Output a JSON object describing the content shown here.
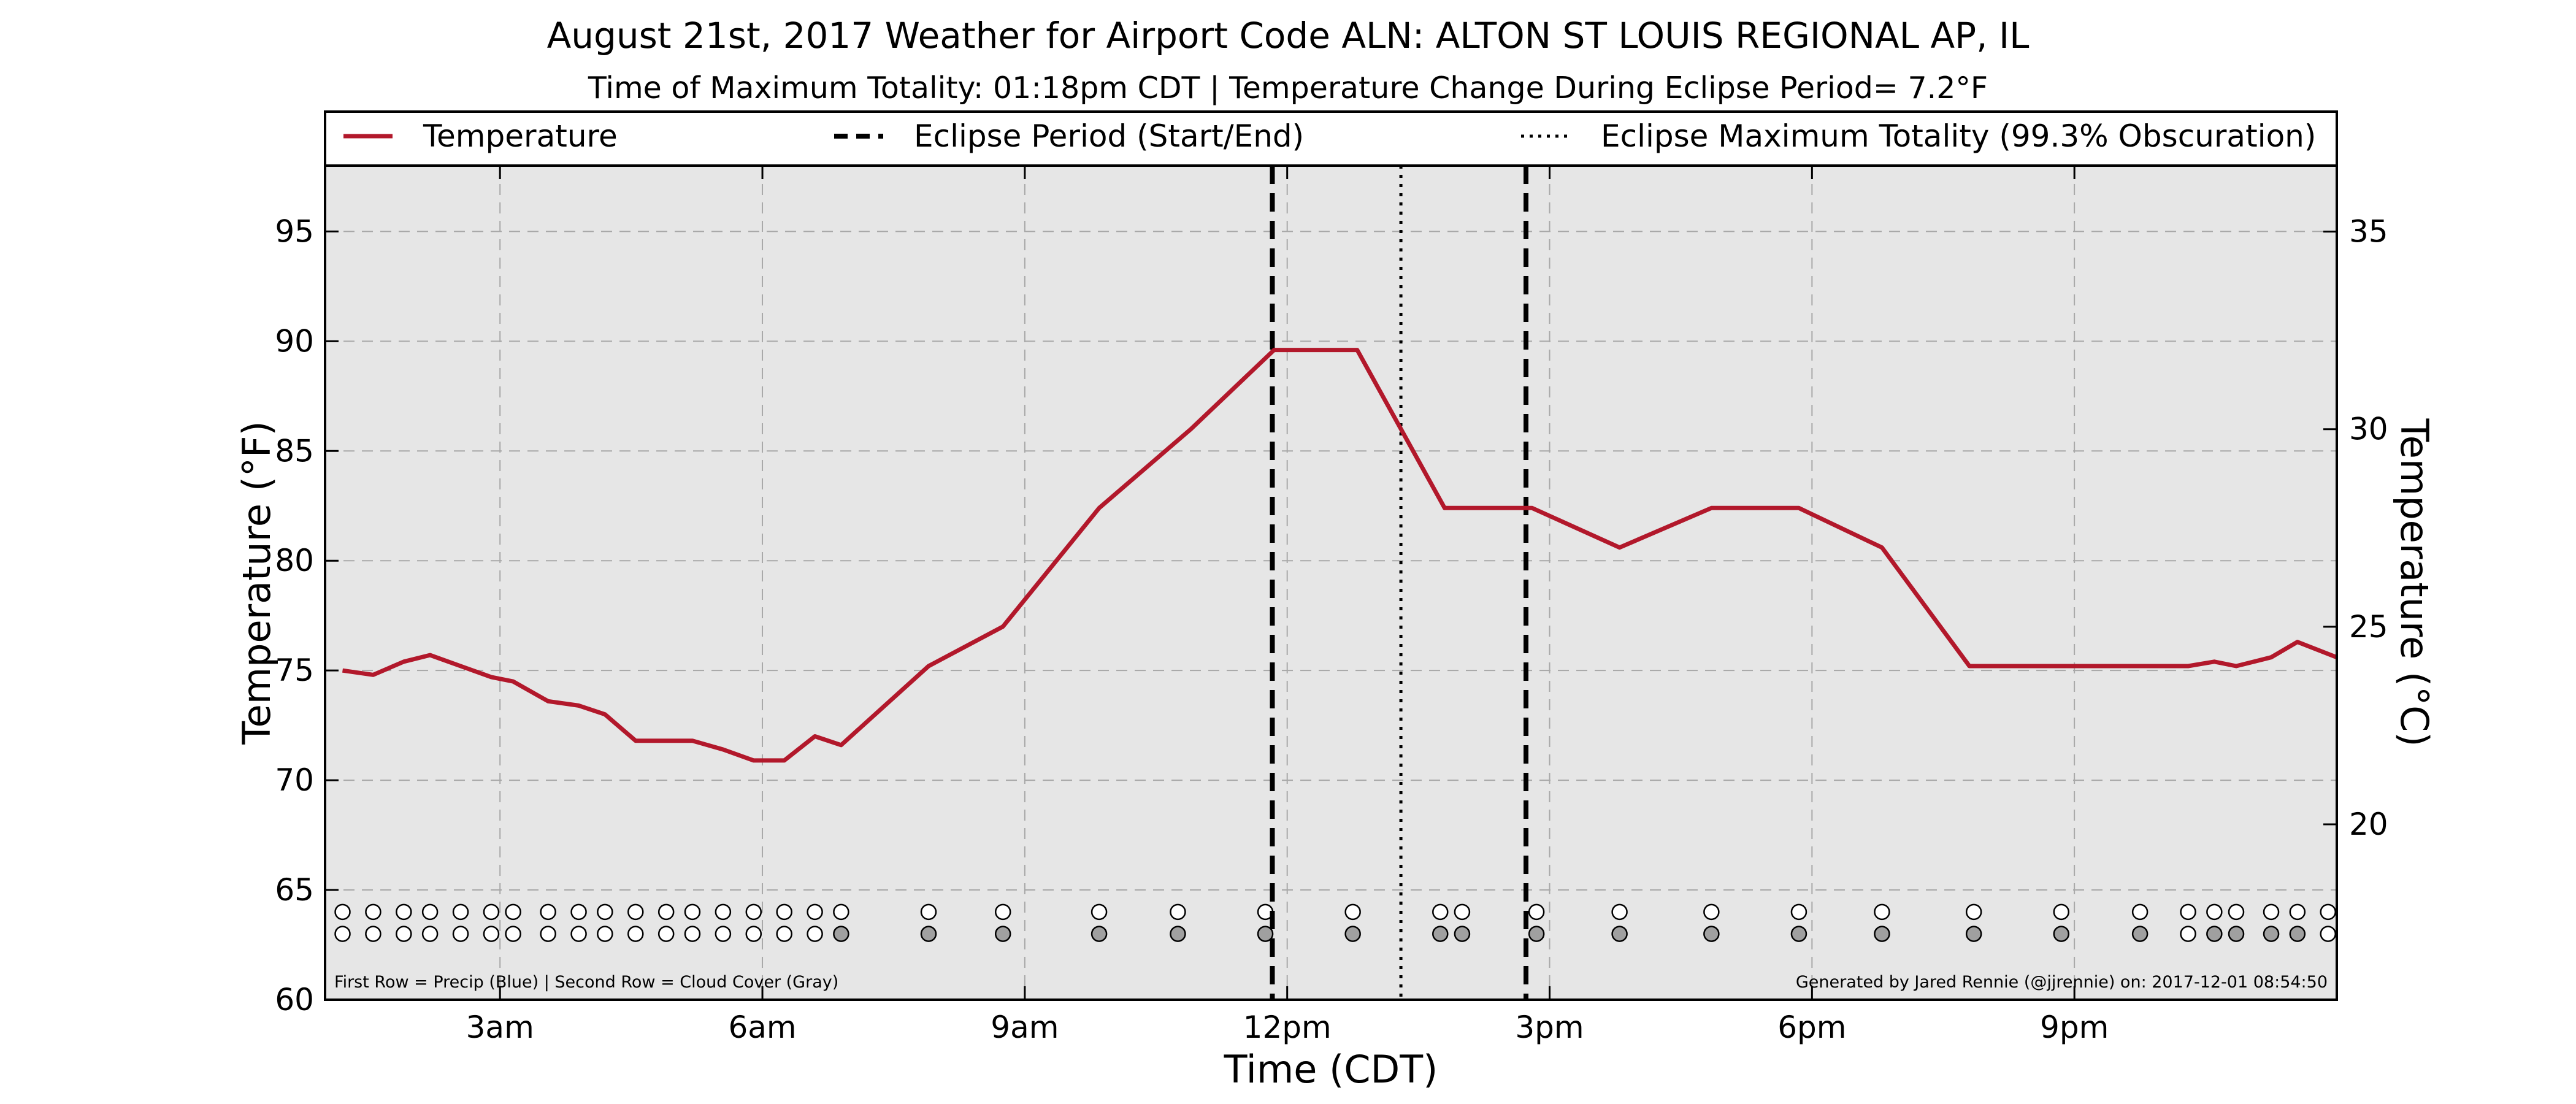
{
  "chart_data": {
    "type": "line",
    "title": "August 21st, 2017 Weather for Airport Code ALN: ALTON ST LOUIS REGIONAL AP, IL",
    "subtitle": "Time of Maximum Totality: 01:18pm CDT | Temperature Change During Eclipse Period= 7.2°F",
    "xlabel": "Time (CDT)",
    "ylabel": "Temperature (°F)",
    "ylabel_right": "Temperature (°C)",
    "xlim": [
      1.0,
      24.0
    ],
    "ylim": [
      60,
      98
    ],
    "ylim_right": [
      15.56,
      36.67
    ],
    "grid": true,
    "legend_position": "top",
    "x_ticks": [
      {
        "x": 3,
        "label": "3am"
      },
      {
        "x": 6,
        "label": "6am"
      },
      {
        "x": 9,
        "label": "9am"
      },
      {
        "x": 12,
        "label": "12pm"
      },
      {
        "x": 15,
        "label": "3pm"
      },
      {
        "x": 18,
        "label": "6pm"
      },
      {
        "x": 21,
        "label": "9pm"
      }
    ],
    "y_ticks": [
      60,
      65,
      70,
      75,
      80,
      85,
      90,
      95
    ],
    "y_ticks_right": [
      15,
      20,
      25,
      30,
      35
    ],
    "legend": [
      {
        "label": "Temperature",
        "style": "solid",
        "color": "#b2182b"
      },
      {
        "label": "Eclipse Period (Start/End)",
        "style": "dashed",
        "color": "#000000"
      },
      {
        "label": "Eclipse Maximum Totality (99.3% Obscuration)",
        "style": "dotted",
        "color": "#000000"
      }
    ],
    "series": [
      {
        "name": "Temperature",
        "color": "#b2182b",
        "points": [
          [
            1.2,
            75.0
          ],
          [
            1.55,
            74.8
          ],
          [
            1.9,
            75.4
          ],
          [
            2.2,
            75.7
          ],
          [
            2.55,
            75.2
          ],
          [
            2.9,
            74.7
          ],
          [
            3.15,
            74.5
          ],
          [
            3.55,
            73.6
          ],
          [
            3.9,
            73.4
          ],
          [
            4.2,
            73.0
          ],
          [
            4.55,
            71.8
          ],
          [
            4.9,
            71.8
          ],
          [
            5.2,
            71.8
          ],
          [
            5.55,
            71.4
          ],
          [
            5.9,
            70.9
          ],
          [
            6.25,
            70.9
          ],
          [
            6.6,
            72.0
          ],
          [
            6.9,
            71.6
          ],
          [
            7.9,
            75.2
          ],
          [
            8.75,
            77.0
          ],
          [
            9.85,
            82.4
          ],
          [
            10.9,
            86.0
          ],
          [
            11.85,
            89.6
          ],
          [
            12.8,
            89.6
          ],
          [
            13.8,
            82.4
          ],
          [
            14.8,
            82.4
          ],
          [
            15.8,
            80.6
          ],
          [
            16.85,
            82.4
          ],
          [
            17.85,
            82.4
          ],
          [
            18.8,
            80.6
          ],
          [
            19.8,
            75.2
          ],
          [
            20.8,
            75.2
          ],
          [
            21.75,
            75.2
          ],
          [
            22.3,
            75.2
          ],
          [
            22.6,
            75.4
          ],
          [
            22.85,
            75.2
          ],
          [
            23.25,
            75.6
          ],
          [
            23.55,
            76.3
          ],
          [
            24.0,
            75.6
          ]
        ]
      }
    ],
    "eclipse_start": 11.83,
    "eclipse_end": 14.73,
    "eclipse_max": 13.3,
    "obs_precip_y": 64.0,
    "obs_cloud_y": 63.0,
    "observations": [
      {
        "x": 1.2,
        "precip": "none",
        "cloud": "clear"
      },
      {
        "x": 1.55,
        "precip": "none",
        "cloud": "clear"
      },
      {
        "x": 1.9,
        "precip": "none",
        "cloud": "clear"
      },
      {
        "x": 2.2,
        "precip": "none",
        "cloud": "clear"
      },
      {
        "x": 2.55,
        "precip": "none",
        "cloud": "clear"
      },
      {
        "x": 2.9,
        "precip": "none",
        "cloud": "clear"
      },
      {
        "x": 3.15,
        "precip": "none",
        "cloud": "clear"
      },
      {
        "x": 3.55,
        "precip": "none",
        "cloud": "clear"
      },
      {
        "x": 3.9,
        "precip": "none",
        "cloud": "clear"
      },
      {
        "x": 4.2,
        "precip": "none",
        "cloud": "clear"
      },
      {
        "x": 4.55,
        "precip": "none",
        "cloud": "clear"
      },
      {
        "x": 4.9,
        "precip": "none",
        "cloud": "clear"
      },
      {
        "x": 5.2,
        "precip": "none",
        "cloud": "clear"
      },
      {
        "x": 5.55,
        "precip": "none",
        "cloud": "clear"
      },
      {
        "x": 5.9,
        "precip": "none",
        "cloud": "clear"
      },
      {
        "x": 6.25,
        "precip": "none",
        "cloud": "clear"
      },
      {
        "x": 6.6,
        "precip": "none",
        "cloud": "clear"
      },
      {
        "x": 6.9,
        "precip": "none",
        "cloud": "cloudy"
      },
      {
        "x": 7.9,
        "precip": "none",
        "cloud": "cloudy"
      },
      {
        "x": 8.75,
        "precip": "none",
        "cloud": "cloudy"
      },
      {
        "x": 9.85,
        "precip": "none",
        "cloud": "cloudy"
      },
      {
        "x": 10.75,
        "precip": "none",
        "cloud": "cloudy"
      },
      {
        "x": 11.75,
        "precip": "none",
        "cloud": "cloudy"
      },
      {
        "x": 12.75,
        "precip": "none",
        "cloud": "cloudy"
      },
      {
        "x": 13.75,
        "precip": "none",
        "cloud": "cloudy"
      },
      {
        "x": 14.0,
        "precip": "none",
        "cloud": "cloudy"
      },
      {
        "x": 14.85,
        "precip": "none",
        "cloud": "cloudy"
      },
      {
        "x": 15.8,
        "precip": "none",
        "cloud": "cloudy"
      },
      {
        "x": 16.85,
        "precip": "none",
        "cloud": "cloudy"
      },
      {
        "x": 17.85,
        "precip": "none",
        "cloud": "cloudy"
      },
      {
        "x": 18.8,
        "precip": "none",
        "cloud": "cloudy"
      },
      {
        "x": 19.85,
        "precip": "none",
        "cloud": "cloudy"
      },
      {
        "x": 20.85,
        "precip": "none",
        "cloud": "cloudy"
      },
      {
        "x": 21.75,
        "precip": "none",
        "cloud": "cloudy"
      },
      {
        "x": 22.3,
        "precip": "none",
        "cloud": "clear"
      },
      {
        "x": 22.6,
        "precip": "none",
        "cloud": "cloudy"
      },
      {
        "x": 22.85,
        "precip": "none",
        "cloud": "cloudy"
      },
      {
        "x": 23.25,
        "precip": "none",
        "cloud": "cloudy"
      },
      {
        "x": 23.55,
        "precip": "none",
        "cloud": "cloudy"
      },
      {
        "x": 23.9,
        "precip": "none",
        "cloud": "clear"
      }
    ],
    "annotations": {
      "footer_left": "First Row = Precip (Blue) | Second Row = Cloud Cover (Gray)",
      "footer_right": "Generated by Jared Rennie (@jjrennie) on: 2017-12-01 08:54:50"
    },
    "colors": {
      "plot_background": "#e6e6e6",
      "temperature_line": "#b2182b",
      "cloud_fill": "#a0a0a0",
      "clear_fill": "#ffffff",
      "grid": "#a8a8a8"
    }
  }
}
